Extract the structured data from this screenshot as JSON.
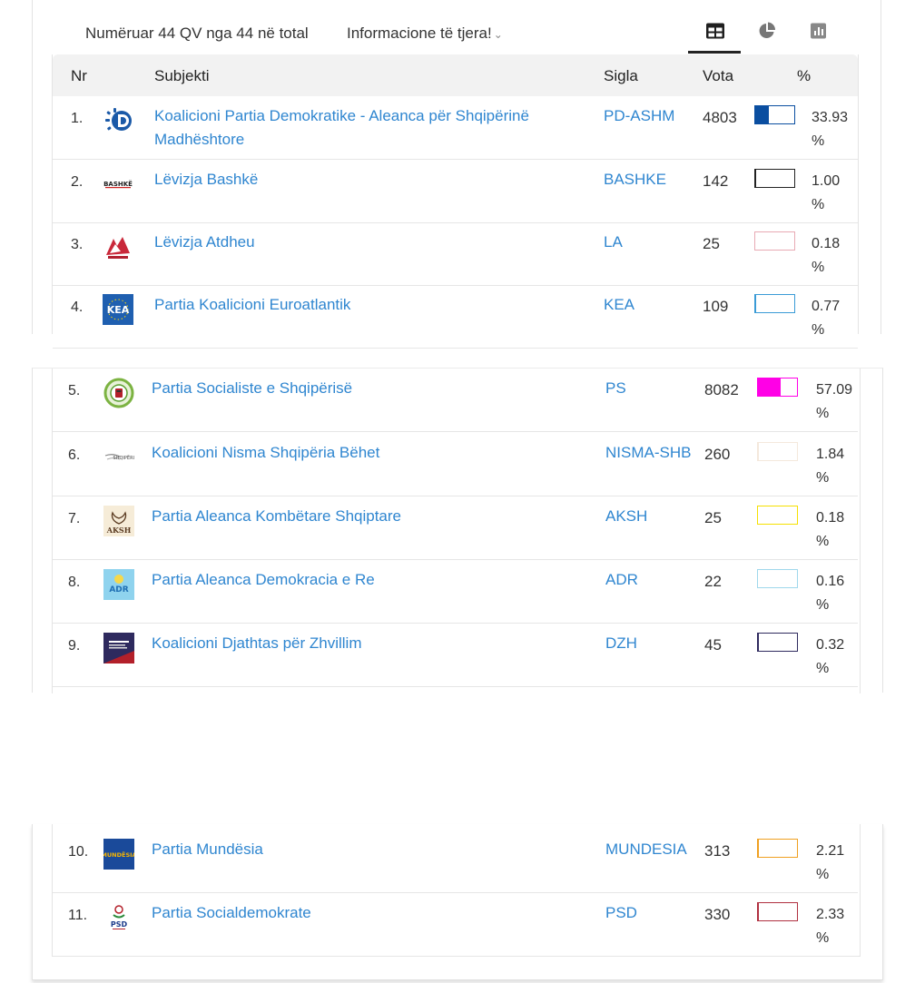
{
  "toolbar": {
    "count_text": "Numëruar 44 QV nga 44 në total",
    "info_label": "Informacione të tjera!",
    "info_chevron": "⌄",
    "view_tabs": [
      "table",
      "pie-chart",
      "bar-chart"
    ],
    "active_tab": "table"
  },
  "table": {
    "headers": {
      "nr": "Nr",
      "subject": "Subjekti",
      "sigla": "Sigla",
      "vota": "Vota",
      "pct": "%"
    },
    "rows": [
      {
        "nr": "1.",
        "subject": "Koalicioni Partia Demokratike - Aleanca për Shqipërinë Madhështore",
        "sigla": "PD-ASHM",
        "votes": "4803",
        "pct": "33.93 %",
        "share": 0.3393,
        "color": "#0a4ea0",
        "logo_icon": "pd-logo-icon"
      },
      {
        "nr": "2.",
        "subject": "Lëvizja Bashkë",
        "sigla": "BASHKE",
        "votes": "142",
        "pct": "1.00 %",
        "share": 0.01,
        "color": "#222222",
        "logo_icon": "bashke-logo-icon"
      },
      {
        "nr": "3.",
        "subject": "Lëvizja Atdheu",
        "sigla": "LA",
        "votes": "25",
        "pct": "0.18 %",
        "share": 0.0018,
        "color": "#e8aab4",
        "logo_icon": "la-logo-icon"
      },
      {
        "nr": "4.",
        "subject": "Partia Koalicioni Euroatlantik",
        "sigla": "KEA",
        "votes": "109",
        "pct": "0.77 %",
        "share": 0.0077,
        "color": "#3a9bd6",
        "logo_icon": "kea-logo-icon"
      },
      {
        "nr": "5.",
        "subject": "Partia Socialiste e Shqipërisë",
        "sigla": "PS",
        "votes": "8082",
        "pct": "57.09 %",
        "share": 0.5709,
        "color": "#ff00e6",
        "logo_icon": "ps-logo-icon"
      },
      {
        "nr": "6.",
        "subject": "Koalicioni Nisma Shqipëria Bëhet",
        "sigla": "NISMA-SHB",
        "votes": "260",
        "pct": "1.84 %",
        "share": 0.0184,
        "color": "#f4e8dc",
        "logo_icon": "nisma-logo-icon"
      },
      {
        "nr": "7.",
        "subject": "Partia Aleanca Kombëtare Shqiptare",
        "sigla": "AKSH",
        "votes": "25",
        "pct": "0.18 %",
        "share": 0.0018,
        "color": "#f5e000",
        "logo_icon": "aksh-logo-icon"
      },
      {
        "nr": "8.",
        "subject": "Partia Aleanca Demokracia e Re",
        "sigla": "ADR",
        "votes": "22",
        "pct": "0.16 %",
        "share": 0.0016,
        "color": "#9fd8ec",
        "logo_icon": "adr-logo-icon"
      },
      {
        "nr": "9.",
        "subject": "Koalicioni Djathtas për Zhvillim",
        "sigla": "DZH",
        "votes": "45",
        "pct": "0.32 %",
        "share": 0.0032,
        "color": "#2e2a5e",
        "logo_icon": "dzh-logo-icon"
      },
      {
        "nr": "10.",
        "subject": "Partia Mundësia",
        "sigla": "MUNDESIA",
        "votes": "313",
        "pct": "2.21 %",
        "share": 0.0221,
        "color": "#f0a020",
        "logo_icon": "mundesia-logo-icon"
      },
      {
        "nr": "11.",
        "subject": "Partia Socialdemokrate",
        "sigla": "PSD",
        "votes": "330",
        "pct": "2.33 %",
        "share": 0.0233,
        "color": "#b03040",
        "logo_icon": "psd-logo-icon"
      }
    ]
  }
}
